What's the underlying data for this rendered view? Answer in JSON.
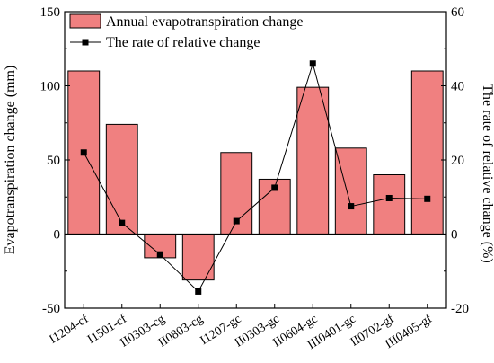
{
  "chart_data": {
    "type": "bar",
    "categories": [
      "I1204-cf",
      "I1501-cf",
      "II0303-cg",
      "II0803-cg",
      "I1207-gc",
      "II0303-gc",
      "II0604-gc",
      "III0401-gc",
      "II0702-gf",
      "III0405-gf"
    ],
    "series": [
      {
        "name": "Annual evapotranspiration change",
        "kind": "bar",
        "axis": "left",
        "color": "#f08080",
        "values": [
          110,
          74,
          -16,
          -31,
          55,
          37,
          99,
          58,
          40,
          110
        ]
      },
      {
        "name": "The rate of relative change",
        "kind": "line",
        "axis": "right",
        "color": "#000000",
        "values": [
          22,
          3,
          -5.5,
          -15.5,
          3.5,
          12.5,
          46,
          7.5,
          9.7,
          9.5
        ]
      }
    ],
    "ylabel": "Evapotranspiration change (mm)",
    "y2label": "The rate of relative change (%)",
    "ylim": [
      -50,
      150
    ],
    "y2lim": [
      -20,
      60
    ],
    "yticks": [
      -50,
      0,
      50,
      100,
      150
    ],
    "y2ticks": [
      -20,
      0,
      20,
      40,
      60
    ],
    "legend_position": "top-left",
    "grid": false
  }
}
